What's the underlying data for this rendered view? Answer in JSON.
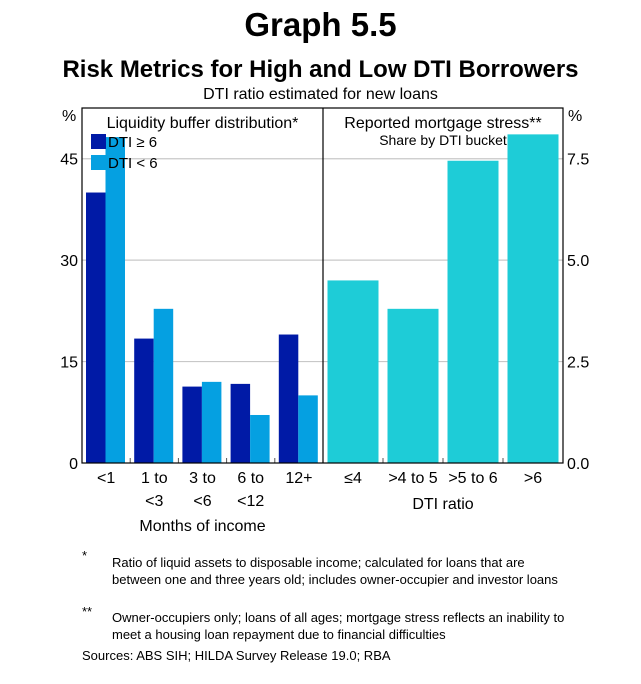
{
  "header": {
    "title": "Graph 5.5",
    "subtitle": "Risk Metrics for High and Low DTI Borrowers",
    "description": "DTI ratio estimated for new loans"
  },
  "chart_data": [
    {
      "type": "bar",
      "title": "Liquidity buffer distribution*",
      "categories": [
        "<1",
        "1 to\n<3",
        "3 to\n<6",
        "6 to\n<12",
        "12+"
      ],
      "category_lines": [
        [
          "<1"
        ],
        [
          "1 to",
          "<3"
        ],
        [
          "3 to",
          "<6"
        ],
        [
          "6 to",
          "<12"
        ],
        [
          "12+"
        ]
      ],
      "xlabel": "Months of income",
      "ylabel": "%",
      "ylim": [
        0,
        52.5
      ],
      "yticks": [
        0,
        15,
        30,
        45
      ],
      "ytick_labels": [
        "0",
        "15",
        "30",
        "45"
      ],
      "grid": true,
      "legend_position": "top-left",
      "series": [
        {
          "name": "DTI ≥ 6",
          "color": "#001AA6",
          "values": [
            40.0,
            18.4,
            11.3,
            11.7,
            19.0
          ]
        },
        {
          "name": "DTI < 6",
          "color": "#05A0E1",
          "values": [
            48.2,
            22.8,
            12.0,
            7.1,
            10.0
          ]
        }
      ]
    },
    {
      "type": "bar",
      "title": "Reported mortgage stress**",
      "subtitle": "Share by DTI bucket",
      "categories": [
        "≤4",
        ">4 to 5",
        ">5 to 6",
        ">6"
      ],
      "xlabel": "DTI ratio",
      "ylabel": "%",
      "ylim": [
        0,
        8.75
      ],
      "yticks": [
        0,
        2.5,
        5,
        7.5
      ],
      "ytick_labels": [
        "0.0",
        "2.5",
        "5.0",
        "7.5"
      ],
      "grid": true,
      "series": [
        {
          "name": "Reported mortgage stress",
          "color": "#1ECCD7",
          "values": [
            4.5,
            3.8,
            7.45,
            8.1
          ]
        }
      ]
    }
  ],
  "notes": [
    {
      "mark": "*",
      "text": "Ratio of liquid assets to disposable income; calculated for loans that are between one and three years old; includes owner-occupier and investor loans"
    },
    {
      "mark": "**",
      "text": "Owner-occupiers only; loans of all ages; mortgage stress reflects an inability to meet a housing loan repayment due to financial difficulties"
    }
  ],
  "sources": "Sources: ABS SIH; HILDA Survey Release 19.0; RBA"
}
